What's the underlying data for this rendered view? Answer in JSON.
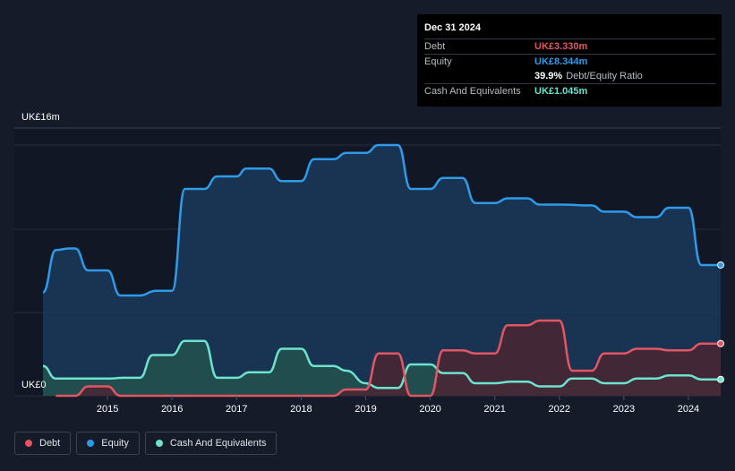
{
  "tooltip": {
    "date": "Dec 31 2024",
    "rows": [
      {
        "label": "Debt",
        "value": "UK£3.330m",
        "color": "#e25563"
      },
      {
        "label": "Equity",
        "value": "UK£8.344m",
        "color": "#2f9be8"
      },
      {
        "label": "",
        "value": "39.9%",
        "suffix": "Debt/Equity Ratio",
        "color": "#ffffff"
      },
      {
        "label": "Cash And Equivalents",
        "value": "UK£1.045m",
        "color": "#6de2cd"
      }
    ]
  },
  "legend": [
    {
      "label": "Debt",
      "color": "#e25563"
    },
    {
      "label": "Equity",
      "color": "#2f9be8"
    },
    {
      "label": "Cash And Equivalents",
      "color": "#6de2cd"
    }
  ],
  "chart_data": {
    "type": "area",
    "title": "",
    "xlabel": "",
    "ylabel": "",
    "y_top_label": "UK£16m",
    "y_bottom_label": "UK£0",
    "ylim": [
      0,
      16
    ],
    "xlim": [
      2014.5,
      2025.0
    ],
    "x_ticks": [
      2015,
      2016,
      2017,
      2018,
      2019,
      2020,
      2021,
      2022,
      2023,
      2024
    ],
    "grid": true,
    "legend_position": "bottom-left",
    "series": [
      {
        "name": "Equity",
        "color": "#2f9be8",
        "fill": "#1b3a5a",
        "points": [
          [
            2014.5,
            6.6
          ],
          [
            2014.7,
            9.3
          ],
          [
            2014.9,
            9.4
          ],
          [
            2015.0,
            9.4
          ],
          [
            2015.2,
            8.0
          ],
          [
            2015.5,
            8.0
          ],
          [
            2015.7,
            6.4
          ],
          [
            2016.0,
            6.4
          ],
          [
            2016.25,
            6.7
          ],
          [
            2016.5,
            6.7
          ],
          [
            2016.7,
            13.2
          ],
          [
            2017.0,
            13.2
          ],
          [
            2017.2,
            14.0
          ],
          [
            2017.5,
            14.0
          ],
          [
            2017.65,
            14.5
          ],
          [
            2018.0,
            14.5
          ],
          [
            2018.2,
            13.7
          ],
          [
            2018.5,
            13.7
          ],
          [
            2018.7,
            15.1
          ],
          [
            2019.0,
            15.1
          ],
          [
            2019.2,
            15.5
          ],
          [
            2019.5,
            15.5
          ],
          [
            2019.7,
            16.0
          ],
          [
            2020.0,
            16.0
          ],
          [
            2020.2,
            13.2
          ],
          [
            2020.5,
            13.2
          ],
          [
            2020.7,
            13.9
          ],
          [
            2021.0,
            13.9
          ],
          [
            2021.2,
            12.3
          ],
          [
            2021.5,
            12.3
          ],
          [
            2021.7,
            12.6
          ],
          [
            2022.0,
            12.6
          ],
          [
            2022.2,
            12.2
          ],
          [
            2022.5,
            12.2
          ],
          [
            2023.0,
            12.15
          ],
          [
            2023.2,
            11.75
          ],
          [
            2023.5,
            11.75
          ],
          [
            2023.7,
            11.4
          ],
          [
            2024.0,
            11.4
          ],
          [
            2024.2,
            12.0
          ],
          [
            2024.5,
            12.0
          ],
          [
            2024.7,
            8.344
          ],
          [
            2025.0,
            8.344
          ]
        ]
      },
      {
        "name": "Cash And Equivalents",
        "color": "#6de2cd",
        "fill": "#24524f",
        "points": [
          [
            2014.5,
            1.9
          ],
          [
            2014.7,
            1.1
          ],
          [
            2015.0,
            1.1
          ],
          [
            2015.5,
            1.1
          ],
          [
            2015.75,
            1.15
          ],
          [
            2016.0,
            1.15
          ],
          [
            2016.2,
            2.6
          ],
          [
            2016.5,
            2.6
          ],
          [
            2016.7,
            3.5
          ],
          [
            2017.0,
            3.5
          ],
          [
            2017.2,
            1.15
          ],
          [
            2017.5,
            1.15
          ],
          [
            2017.7,
            1.5
          ],
          [
            2018.0,
            1.5
          ],
          [
            2018.2,
            3.0
          ],
          [
            2018.5,
            3.0
          ],
          [
            2018.7,
            1.9
          ],
          [
            2019.0,
            1.9
          ],
          [
            2019.2,
            1.6
          ],
          [
            2019.5,
            0.8
          ],
          [
            2019.7,
            0.5
          ],
          [
            2020.0,
            0.5
          ],
          [
            2020.2,
            2.0
          ],
          [
            2020.5,
            2.0
          ],
          [
            2020.7,
            1.45
          ],
          [
            2021.0,
            1.45
          ],
          [
            2021.2,
            0.8
          ],
          [
            2021.5,
            0.8
          ],
          [
            2021.75,
            0.9
          ],
          [
            2022.0,
            0.9
          ],
          [
            2022.2,
            0.6
          ],
          [
            2022.5,
            0.6
          ],
          [
            2022.7,
            1.1
          ],
          [
            2023.0,
            1.1
          ],
          [
            2023.2,
            0.8
          ],
          [
            2023.5,
            0.8
          ],
          [
            2023.7,
            1.1
          ],
          [
            2024.0,
            1.1
          ],
          [
            2024.2,
            1.3
          ],
          [
            2024.5,
            1.3
          ],
          [
            2024.7,
            1.045
          ],
          [
            2025.0,
            1.045
          ]
        ]
      },
      {
        "name": "Debt",
        "color": "#e25563",
        "fill": "#4a2633",
        "points": [
          [
            2014.7,
            0.0
          ],
          [
            2015.0,
            0.0
          ],
          [
            2015.2,
            0.6
          ],
          [
            2015.5,
            0.6
          ],
          [
            2015.7,
            0.0
          ],
          [
            2019.0,
            0.0
          ],
          [
            2019.2,
            0.4
          ],
          [
            2019.5,
            0.4
          ],
          [
            2019.7,
            2.7
          ],
          [
            2020.0,
            2.7
          ],
          [
            2020.2,
            0.0
          ],
          [
            2020.5,
            0.0
          ],
          [
            2020.7,
            2.9
          ],
          [
            2021.0,
            2.9
          ],
          [
            2021.2,
            2.7
          ],
          [
            2021.5,
            2.7
          ],
          [
            2021.7,
            4.5
          ],
          [
            2022.0,
            4.5
          ],
          [
            2022.2,
            4.8
          ],
          [
            2022.5,
            4.8
          ],
          [
            2022.7,
            1.6
          ],
          [
            2023.0,
            1.6
          ],
          [
            2023.2,
            2.7
          ],
          [
            2023.5,
            2.7
          ],
          [
            2023.7,
            3.0
          ],
          [
            2024.0,
            3.0
          ],
          [
            2024.2,
            2.9
          ],
          [
            2024.5,
            2.9
          ],
          [
            2024.7,
            3.33
          ],
          [
            2025.0,
            3.33
          ]
        ]
      }
    ]
  }
}
